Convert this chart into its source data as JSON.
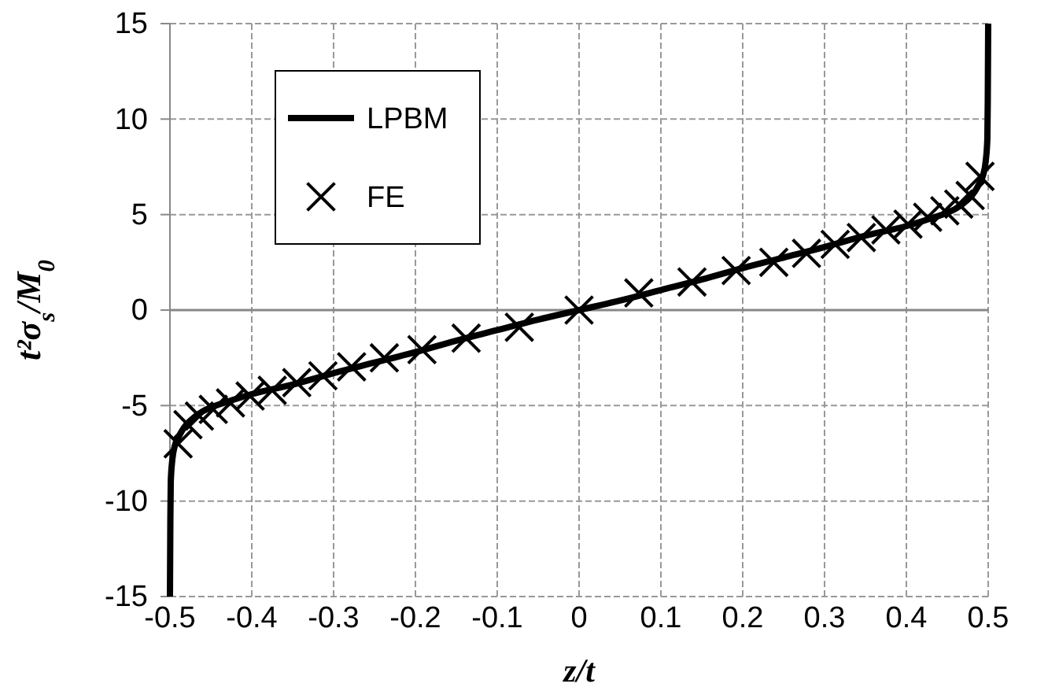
{
  "chart_data": {
    "type": "line",
    "xlabel": "z/t",
    "ylabel": "t²σ$_{s}$/M$_{0}$",
    "xlim": [
      -0.5,
      0.5
    ],
    "xticks": [
      -0.5,
      -0.4,
      -0.3,
      -0.2,
      -0.1,
      0,
      0.1,
      0.2,
      0.3,
      0.4,
      0.5
    ],
    "ylim": [
      -15,
      15
    ],
    "yticks": [
      -15,
      -10,
      -5,
      0,
      5,
      10,
      15
    ],
    "grid": true,
    "legend": "top left",
    "series": [
      {
        "name": "LPBM",
        "color": "#000000",
        "marker": "none",
        "line_style": "solid",
        "x": [
          -0.5,
          -0.4995,
          -0.499,
          -0.497,
          -0.494,
          -0.49,
          -0.485,
          -0.48,
          -0.47,
          -0.46,
          -0.45,
          -0.43,
          -0.4,
          -0.35,
          -0.3,
          -0.25,
          -0.2,
          -0.15,
          -0.1,
          -0.05,
          0,
          0.05,
          0.1,
          0.15,
          0.2,
          0.25,
          0.3,
          0.35,
          0.4,
          0.43,
          0.45,
          0.46,
          0.47,
          0.48,
          0.485,
          0.49,
          0.494,
          0.497,
          0.499,
          0.4995,
          0.5
        ],
        "values": [
          -15,
          -11,
          -9,
          -7.8,
          -7.1,
          -6.7,
          -6.3,
          -6.0,
          -5.6,
          -5.3,
          -5.1,
          -4.8,
          -4.4,
          -3.9,
          -3.3,
          -2.75,
          -2.2,
          -1.6,
          -1.05,
          -0.5,
          0,
          0.5,
          1.05,
          1.6,
          2.2,
          2.75,
          3.3,
          3.9,
          4.4,
          4.8,
          5.1,
          5.3,
          5.6,
          6.0,
          6.3,
          6.7,
          7.1,
          7.8,
          9,
          11,
          15
        ]
      },
      {
        "name": "FE",
        "type": "scatter",
        "color": "#000000",
        "marker": "cross",
        "x": [
          -0.49,
          -0.478,
          -0.464,
          -0.447,
          -0.426,
          -0.402,
          -0.375,
          -0.345,
          -0.313,
          -0.278,
          -0.238,
          -0.192,
          -0.138,
          -0.073,
          0,
          0.073,
          0.138,
          0.192,
          0.238,
          0.278,
          0.313,
          0.345,
          0.375,
          0.402,
          0.426,
          0.447,
          0.464,
          0.478,
          0.49
        ],
        "values": [
          -7,
          -6,
          -5.55,
          -5.2,
          -4.86,
          -4.5,
          -4.2,
          -3.8,
          -3.44,
          -2.97,
          -2.5,
          -2.07,
          -1.47,
          -0.9,
          0,
          0.9,
          1.47,
          2.07,
          2.5,
          2.97,
          3.44,
          3.8,
          4.2,
          4.5,
          4.86,
          5.2,
          5.55,
          6,
          7
        ]
      }
    ]
  }
}
